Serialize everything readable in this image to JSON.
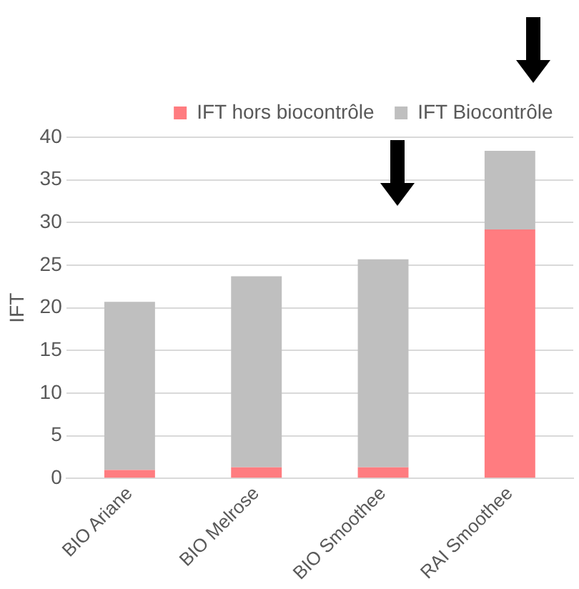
{
  "chart_data": {
    "type": "bar",
    "stacked": true,
    "ylabel": "IFT",
    "categories": [
      "BIO Ariane",
      "BIO Melrose",
      "BIO Smoothee",
      "RAI Smoothee"
    ],
    "series": [
      {
        "name": "IFT hors biocontrôle",
        "color": "#ff7c80",
        "values": [
          1.0,
          1.3,
          1.3,
          29.2
        ]
      },
      {
        "name": "IFT Biocontrôle",
        "color": "#bfbfbf",
        "values": [
          19.7,
          22.4,
          24.4,
          9.2
        ]
      }
    ],
    "ylim": [
      0,
      40
    ],
    "yticks": [
      0,
      5,
      10,
      15,
      20,
      25,
      30,
      35,
      40
    ],
    "grid": "y",
    "legend": "top"
  }
}
